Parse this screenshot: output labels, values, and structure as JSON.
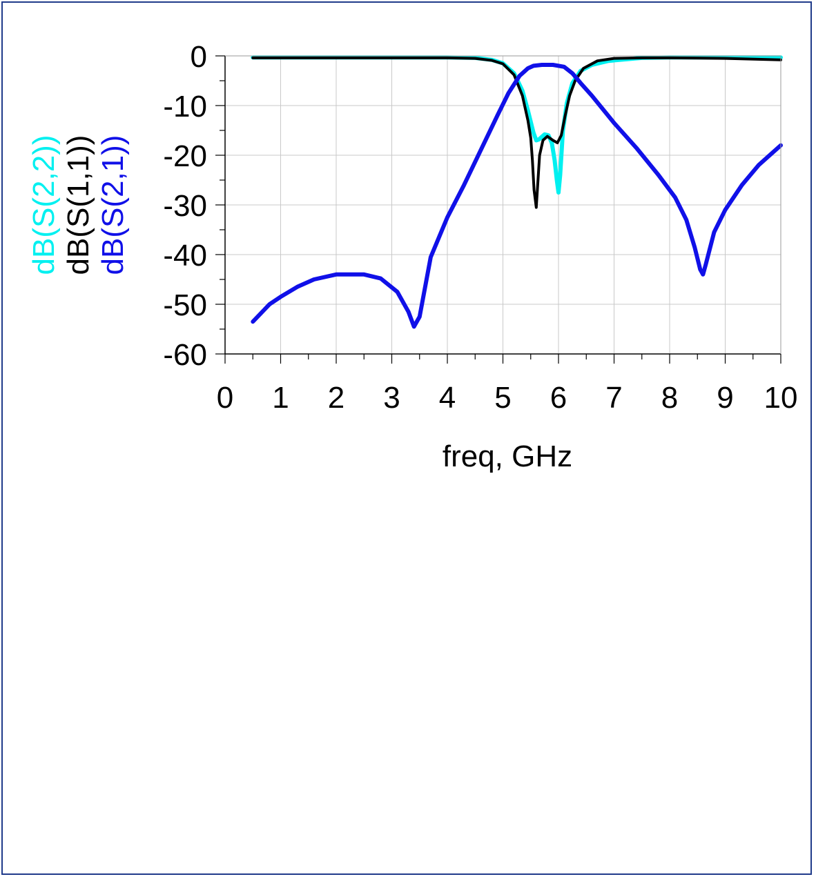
{
  "chart_data": {
    "type": "line",
    "xlabel": "freq, GHz",
    "xlim": [
      0,
      10
    ],
    "ylim": [
      -60,
      0
    ],
    "x_ticks": [
      "0",
      "1",
      "2",
      "3",
      "4",
      "5",
      "6",
      "7",
      "8",
      "9",
      "10"
    ],
    "y_ticks": [
      "0",
      "-10",
      "-20",
      "-30",
      "-40",
      "-50",
      "-60"
    ],
    "grid": true,
    "legend_placement": "left-vertical",
    "series": [
      {
        "name": "dB(S(2,2))",
        "color": "#00f0f0",
        "x": [
          0.5,
          1,
          2,
          3,
          4,
          4.5,
          4.8,
          5.0,
          5.2,
          5.35,
          5.45,
          5.55,
          5.6,
          5.65,
          5.75,
          5.82,
          5.88,
          5.93,
          5.97,
          6.0,
          6.03,
          6.08,
          6.15,
          6.25,
          6.4,
          6.6,
          6.9,
          7.5,
          8,
          9,
          10
        ],
        "values": [
          -0.3,
          -0.3,
          -0.3,
          -0.3,
          -0.3,
          -0.4,
          -0.8,
          -1.5,
          -3.5,
          -7,
          -11,
          -15.5,
          -17,
          -16.8,
          -15.8,
          -16,
          -17.5,
          -21,
          -25,
          -27.5,
          -24,
          -15,
          -9.5,
          -5.5,
          -3,
          -1.8,
          -1,
          -0.4,
          -0.3,
          -0.3,
          -0.3
        ]
      },
      {
        "name": "dB(S(1,1))",
        "color": "#000000",
        "x": [
          0.5,
          1,
          2,
          3,
          4,
          4.5,
          4.8,
          5.0,
          5.2,
          5.35,
          5.45,
          5.5,
          5.53,
          5.56,
          5.6,
          5.62,
          5.66,
          5.72,
          5.8,
          5.9,
          5.98,
          6.05,
          6.12,
          6.2,
          6.3,
          6.45,
          6.7,
          7.0,
          7.5,
          8,
          9,
          10
        ],
        "values": [
          -0.4,
          -0.4,
          -0.4,
          -0.4,
          -0.4,
          -0.5,
          -0.9,
          -1.6,
          -3.8,
          -8,
          -13,
          -16.5,
          -21,
          -27,
          -30.5,
          -27,
          -20,
          -17,
          -16.2,
          -17,
          -17.5,
          -16,
          -12,
          -8,
          -5,
          -2.5,
          -1,
          -0.5,
          -0.4,
          -0.4,
          -0.5,
          -0.8
        ]
      },
      {
        "name": "dB(S(2,1))",
        "color": "#1010e8",
        "x": [
          0.5,
          0.8,
          1,
          1.3,
          1.6,
          2,
          2.5,
          2.8,
          3.1,
          3.3,
          3.4,
          3.5,
          3.7,
          4.0,
          4.3,
          4.6,
          4.9,
          5.1,
          5.3,
          5.45,
          5.55,
          5.7,
          5.9,
          6.1,
          6.25,
          6.4,
          6.6,
          7.0,
          7.4,
          7.8,
          8.1,
          8.3,
          8.45,
          8.55,
          8.6,
          8.65,
          8.8,
          9.0,
          9.3,
          9.6,
          10
        ],
        "values": [
          -53.5,
          -50,
          -48.5,
          -46.5,
          -45,
          -44,
          -44,
          -44.8,
          -47.5,
          -51.5,
          -54.5,
          -52.5,
          -40.5,
          -32.5,
          -26,
          -19,
          -12,
          -7.5,
          -4,
          -2.5,
          -2,
          -1.8,
          -1.8,
          -2.2,
          -3.5,
          -5.5,
          -8,
          -13.5,
          -18.5,
          -24,
          -28.5,
          -33,
          -38.5,
          -43,
          -44,
          -42,
          -35.5,
          -31,
          -26,
          -22,
          -18
        ]
      }
    ]
  }
}
